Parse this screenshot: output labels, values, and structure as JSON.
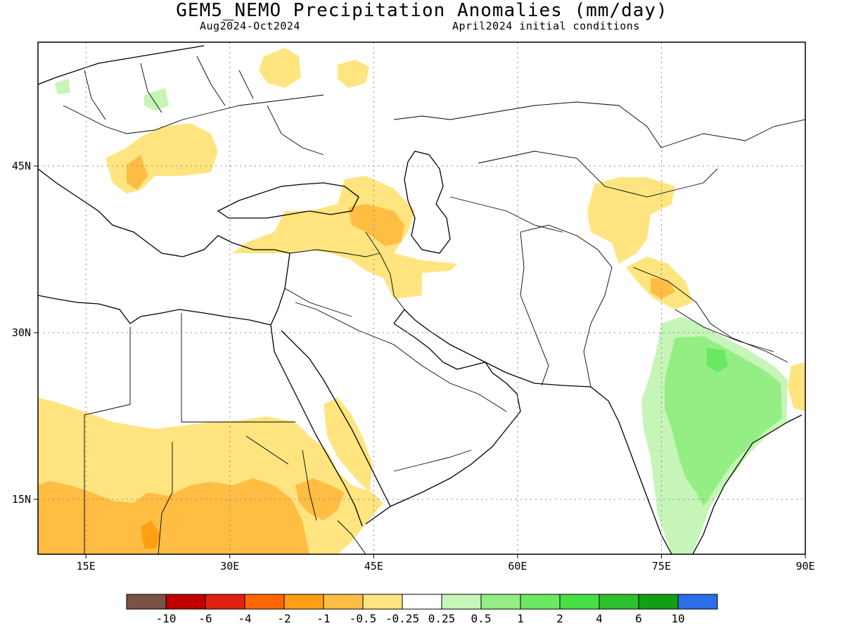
{
  "title": "GEM5_NEMO Precipitation Anomalies (mm/day)",
  "period": "Aug2024-Oct2024",
  "initial_conditions": "April2024 initial conditions",
  "axes": {
    "x_ticks": [
      {
        "value": 15,
        "label": "15E"
      },
      {
        "value": 30,
        "label": "30E"
      },
      {
        "value": 45,
        "label": "45E"
      },
      {
        "value": 60,
        "label": "60E"
      },
      {
        "value": 75,
        "label": "75E"
      },
      {
        "value": 90,
        "label": "90E"
      }
    ],
    "y_ticks": [
      {
        "value": 15,
        "label": "15N"
      },
      {
        "value": 30,
        "label": "30N"
      },
      {
        "value": 45,
        "label": "45N"
      }
    ],
    "lon_range": [
      10,
      90
    ],
    "lat_range": [
      10,
      55
    ],
    "grid": "dotted"
  },
  "colorbar": {
    "colors": [
      "#7a5244",
      "#c00000",
      "#e02010",
      "#ff6600",
      "#ff9f14",
      "#ffbd44",
      "#ffe480",
      "#ffffff",
      "#c6f5b8",
      "#94ee84",
      "#6ae862",
      "#46df44",
      "#2ec02e",
      "#139e13",
      "#2a6ee8"
    ],
    "labels": [
      "-10",
      "-6",
      "-4",
      "-2",
      "-1",
      "-0.5",
      "-0.25",
      "0.25",
      "0.5",
      "1",
      "2",
      "4",
      "6",
      "10"
    ]
  },
  "regions": {
    "dry_light": [
      {
        "lon": [
          33,
          48
        ],
        "lat": [
          11,
          21
        ]
      },
      {
        "lon": [
          10,
          26
        ],
        "lat": [
          11,
          23
        ]
      },
      {
        "lon": [
          38,
          50
        ],
        "lat": [
          33,
          43
        ]
      },
      {
        "lon": [
          68,
          78
        ],
        "lat": [
          33,
          44
        ]
      },
      {
        "lon": [
          20,
          32
        ],
        "lat": [
          42,
          49
        ]
      }
    ],
    "dry_medium": [
      {
        "lon": [
          10,
          20
        ],
        "lat": [
          11,
          16
        ]
      },
      {
        "lon": [
          24,
          34
        ],
        "lat": [
          11,
          15
        ]
      },
      {
        "lon": [
          73,
          76
        ],
        "lat": [
          33,
          35
        ]
      }
    ],
    "wet_light": [
      {
        "lon": [
          73,
          80
        ],
        "lat": [
          10,
          29
        ]
      }
    ],
    "wet_medium": [
      {
        "lon": [
          77,
          87
        ],
        "lat": [
          17,
          28
        ]
      }
    ]
  }
}
